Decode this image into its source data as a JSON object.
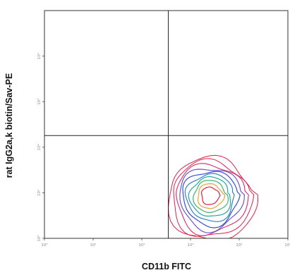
{
  "chart_data": {
    "type": "contour",
    "xlabel": "CD11b FITC",
    "ylabel": "rat IgG2a,k biotin/Sav-PE",
    "x_scale": "log",
    "y_scale": "log",
    "xlim": [
      1,
      100000
    ],
    "ylim": [
      1,
      100000
    ],
    "x_tick_labels": [
      "10⁰",
      "10¹",
      "10²",
      "10³",
      "10⁴",
      "10⁵"
    ],
    "y_tick_labels": [
      "10⁰",
      "10¹",
      "10²",
      "10³",
      "10⁴"
    ],
    "quadrant_gate": {
      "x": 350,
      "y": 180
    },
    "population": {
      "center_x": 2500,
      "center_y": 9,
      "spread_x_decades": 0.9,
      "spread_y_decades": 0.9
    },
    "contour_colors": [
      "#e0204a",
      "#e0204a",
      "#d63a78",
      "#6a5acd",
      "#3a4fd0",
      "#2e86c1",
      "#2aa6a0",
      "#3cb371",
      "#e8a23a",
      "#e0204a"
    ],
    "grid": false,
    "legend": "none"
  }
}
